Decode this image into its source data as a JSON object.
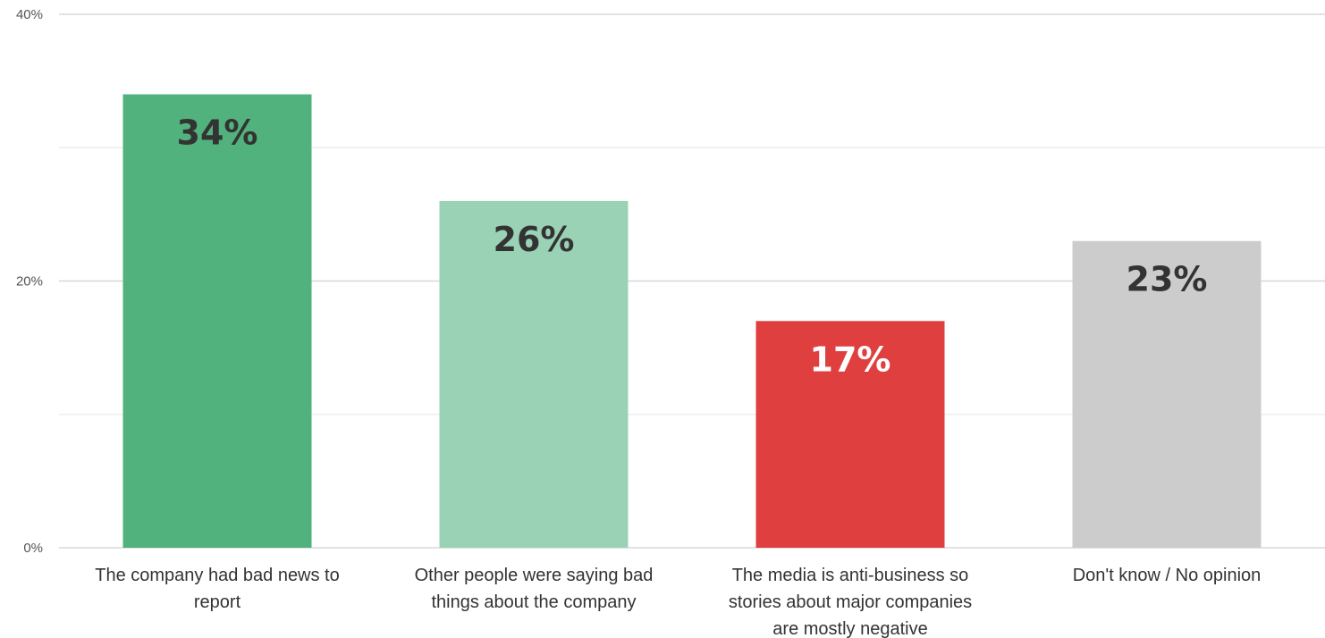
{
  "chart_data": {
    "type": "bar",
    "title": "",
    "xlabel": "",
    "ylabel": "",
    "ylim": [
      0,
      40
    ],
    "y_ticks": [
      {
        "value": 0,
        "label": "0%"
      },
      {
        "value": 20,
        "label": "20%"
      },
      {
        "value": 40,
        "label": "40%"
      }
    ],
    "minor_gridlines": [
      10,
      30
    ],
    "grid": true,
    "legend": "none",
    "categories": [
      [
        "The company had bad news to",
        "report"
      ],
      [
        "Other people were saying bad",
        "things about the company"
      ],
      [
        "The media is anti-business so",
        "stories about major companies",
        "are mostly negative"
      ],
      [
        "Don't know / No opinion"
      ]
    ],
    "values": [
      34,
      26,
      17,
      23
    ],
    "value_labels": [
      "34%",
      "26%",
      "17%",
      "23%"
    ],
    "bar_colors": [
      "#52b27e",
      "#9ad2b6",
      "#e03f3f",
      "#cccccc"
    ],
    "label_colors": [
      "#333333",
      "#333333",
      "#ffffff",
      "#333333"
    ]
  }
}
